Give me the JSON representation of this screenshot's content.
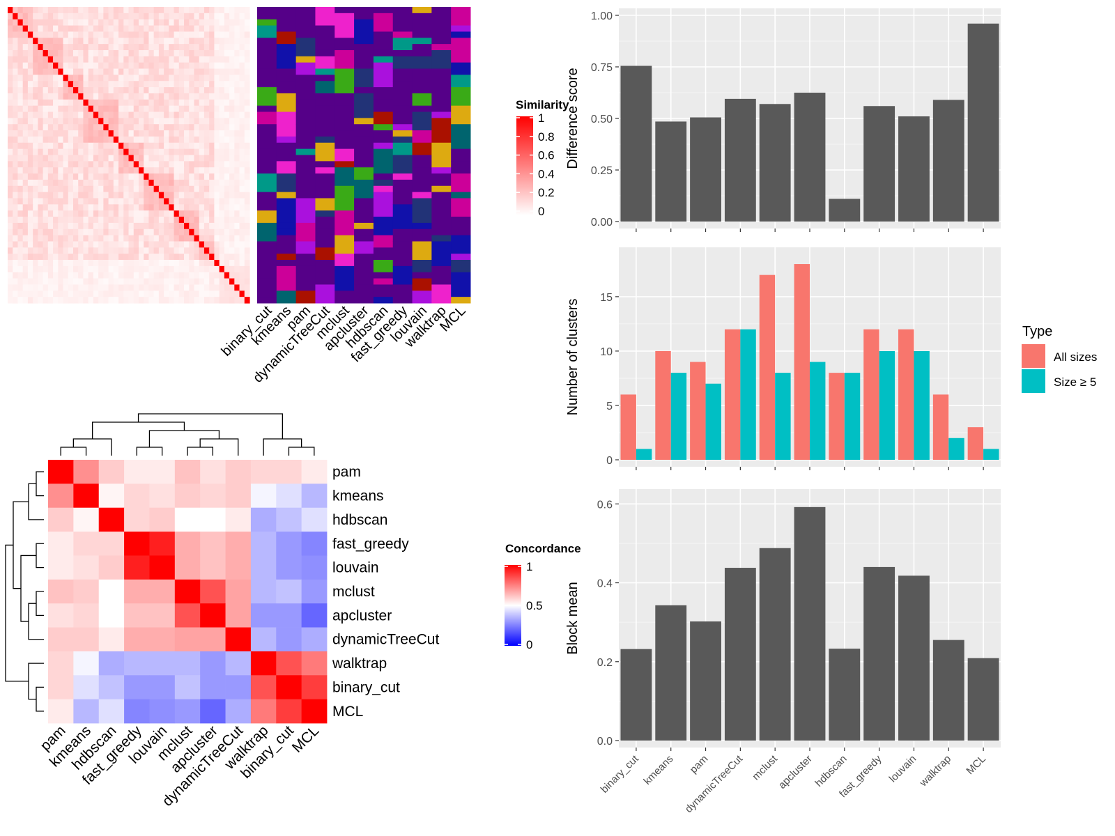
{
  "chart_data": [
    {
      "id": "similarity_heatmap",
      "type": "heatmap",
      "legend_title": "Similarity",
      "legend_ticks": [
        "1",
        "0.8",
        "0.6",
        "0.4",
        "0.2",
        "0"
      ],
      "color_low": "#FFFFFF",
      "color_high": "#FF0000",
      "method_columns": [
        "binary_cut",
        "kmeans",
        "pam",
        "dynamicTreeCut",
        "mclust",
        "apcluster",
        "hdbscan",
        "fast_greedy",
        "louvain",
        "walktrap",
        "MCL"
      ],
      "n_terms": 48
    },
    {
      "id": "concordance_heatmap",
      "type": "heatmap",
      "legend_title": "Concordance",
      "legend_ticks": [
        "1",
        "0.5",
        "0"
      ],
      "color_low": "#0000FF",
      "color_mid": "#FFFFFF",
      "color_high": "#FF0000",
      "rows": [
        "pam",
        "kmeans",
        "hdbscan",
        "fast_greedy",
        "louvain",
        "mclust",
        "apcluster",
        "dynamicTreeCut",
        "walktrap",
        "binary_cut",
        "MCL"
      ],
      "columns": [
        "pam",
        "kmeans",
        "hdbscan",
        "fast_greedy",
        "louvain",
        "mclust",
        "apcluster",
        "dynamicTreeCut",
        "walktrap",
        "binary_cut",
        "MCL"
      ],
      "values": [
        [
          1.0,
          0.72,
          0.6,
          0.54,
          0.54,
          0.62,
          0.56,
          0.6,
          0.58,
          0.58,
          0.54
        ],
        [
          0.72,
          1.0,
          0.52,
          0.58,
          0.56,
          0.6,
          0.58,
          0.6,
          0.48,
          0.44,
          0.36
        ],
        [
          0.6,
          0.52,
          1.0,
          0.58,
          0.6,
          0.5,
          0.5,
          0.54,
          0.34,
          0.38,
          0.44
        ],
        [
          0.54,
          0.58,
          0.58,
          1.0,
          0.94,
          0.66,
          0.62,
          0.66,
          0.36,
          0.3,
          0.26
        ],
        [
          0.54,
          0.56,
          0.6,
          0.94,
          1.0,
          0.66,
          0.62,
          0.66,
          0.36,
          0.3,
          0.28
        ],
        [
          0.62,
          0.6,
          0.5,
          0.66,
          0.66,
          1.0,
          0.84,
          0.68,
          0.36,
          0.38,
          0.3
        ],
        [
          0.56,
          0.58,
          0.5,
          0.62,
          0.62,
          0.84,
          1.0,
          0.68,
          0.3,
          0.3,
          0.2
        ],
        [
          0.6,
          0.6,
          0.54,
          0.66,
          0.66,
          0.68,
          0.68,
          1.0,
          0.36,
          0.3,
          0.34
        ],
        [
          0.58,
          0.48,
          0.34,
          0.36,
          0.36,
          0.36,
          0.3,
          0.36,
          1.0,
          0.84,
          0.76
        ],
        [
          0.58,
          0.44,
          0.38,
          0.3,
          0.3,
          0.38,
          0.3,
          0.3,
          0.84,
          1.0,
          0.88
        ],
        [
          0.54,
          0.36,
          0.44,
          0.26,
          0.28,
          0.3,
          0.2,
          0.34,
          0.76,
          0.88,
          1.0
        ]
      ]
    },
    {
      "id": "difference_score",
      "type": "bar",
      "categories": [
        "binary_cut",
        "kmeans",
        "pam",
        "dynamicTreeCut",
        "mclust",
        "apcluster",
        "hdbscan",
        "fast_greedy",
        "louvain",
        "walktrap",
        "MCL"
      ],
      "values": [
        0.755,
        0.485,
        0.505,
        0.595,
        0.57,
        0.625,
        0.11,
        0.56,
        0.51,
        0.59,
        0.96
      ],
      "ylabel": "Difference score",
      "ylim": [
        0,
        1.0
      ],
      "yticks": [
        "0.00",
        "0.25",
        "0.50",
        "0.75",
        "1.00"
      ],
      "bar_color": "#595959"
    },
    {
      "id": "number_of_clusters",
      "type": "bar",
      "categories": [
        "binary_cut",
        "kmeans",
        "pam",
        "dynamicTreeCut",
        "mclust",
        "apcluster",
        "hdbscan",
        "fast_greedy",
        "louvain",
        "walktrap",
        "MCL"
      ],
      "series": [
        {
          "name": "All sizes",
          "color": "#F8766D",
          "values": [
            6,
            10,
            9,
            12,
            17,
            18,
            8,
            12,
            12,
            6,
            3
          ]
        },
        {
          "name": "Size ≥ 5",
          "color": "#00BFC4",
          "values": [
            1,
            8,
            7,
            12,
            8,
            9,
            8,
            10,
            10,
            2,
            1
          ]
        }
      ],
      "ylabel": "Number of clusters",
      "ylim": [
        0,
        18.9
      ],
      "yticks": [
        "0",
        "5",
        "10",
        "15"
      ],
      "legend_title": "Type",
      "legend_position": "right"
    },
    {
      "id": "block_mean",
      "type": "bar",
      "categories": [
        "binary_cut",
        "kmeans",
        "pam",
        "dynamicTreeCut",
        "mclust",
        "apcluster",
        "hdbscan",
        "fast_greedy",
        "louvain",
        "walktrap",
        "MCL"
      ],
      "values": [
        0.232,
        0.343,
        0.302,
        0.438,
        0.488,
        0.592,
        0.233,
        0.44,
        0.418,
        0.255,
        0.209
      ],
      "ylabel": "Block mean",
      "ylim": [
        0,
        0.62
      ],
      "yticks": [
        "0.0",
        "0.2",
        "0.4",
        "0.6"
      ],
      "bar_color": "#595959"
    }
  ]
}
